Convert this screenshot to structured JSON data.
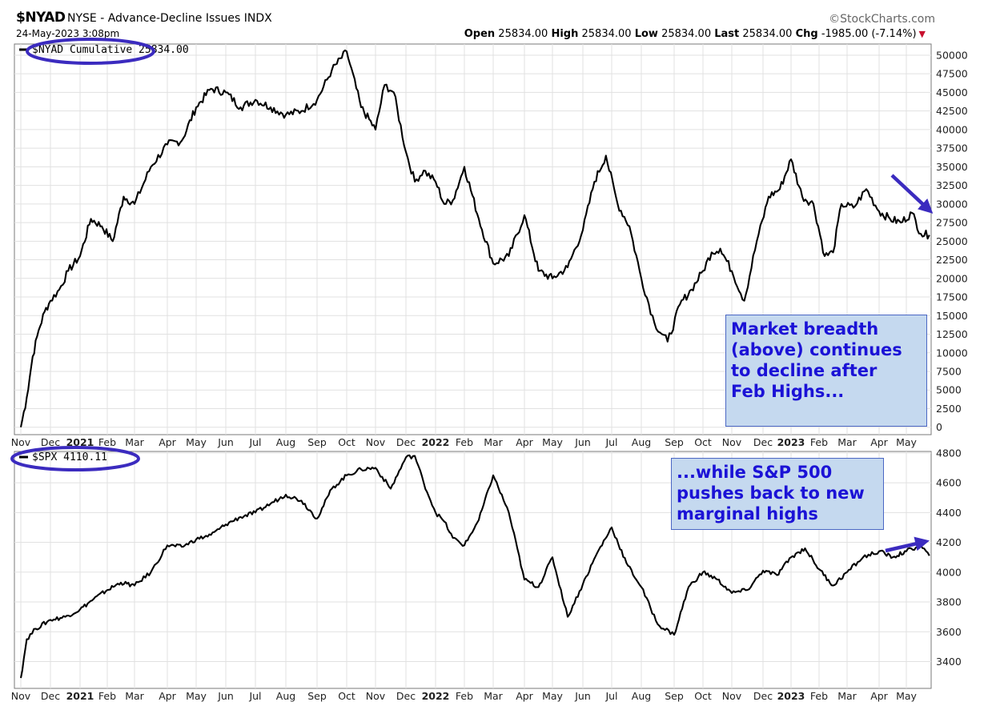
{
  "header": {
    "symbol": "$NYAD",
    "description": "NYSE - Advance-Decline Issues INDX",
    "datetime": "24-May-2023 3:08pm",
    "brand": "©StockCharts.com",
    "open_label": "Open",
    "open": "25834.00",
    "high_label": "High",
    "high": "25834.00",
    "low_label": "Low",
    "low": "25834.00",
    "last_label": "Last",
    "last": "25834.00",
    "chg_label": "Chg",
    "chg": "-1985.00 (-7.14%)"
  },
  "colors": {
    "line": "#000000",
    "circle": "#3b2bbf",
    "arrow": "#3b2bbf",
    "annotation_text": "#1b12d6",
    "annotation_bg": "#c5d9ef"
  },
  "annotations": {
    "breadth": "Market breadth\n(above) continues\nto decline after\nFeb Highs...",
    "spx": "...while S&P 500\npushes back to new\nmarginal highs"
  },
  "chart_data": [
    {
      "type": "line",
      "legend": "$NYAD Cumulative 25834.00",
      "x_axis": [
        "Nov",
        "Dec",
        "2021",
        "Feb",
        "Mar",
        "Apr",
        "May",
        "Jun",
        "Jul",
        "Aug",
        "Sep",
        "Oct",
        "Nov",
        "Dec",
        "2022",
        "Feb",
        "Mar",
        "Apr",
        "May",
        "Jun",
        "Jul",
        "Aug",
        "Sep",
        "Oct",
        "Nov",
        "Dec",
        "2023",
        "Feb",
        "Mar",
        "Apr",
        "May"
      ],
      "x_axis_bold": [
        "2021",
        "2022",
        "2023"
      ],
      "y_ticks": [
        0,
        2500,
        5000,
        7500,
        10000,
        12500,
        15000,
        17500,
        20000,
        22500,
        25000,
        27500,
        30000,
        32500,
        35000,
        37500,
        40000,
        42500,
        45000,
        47500,
        50000
      ],
      "ylim": [
        -1000,
        51500
      ],
      "x_unit": "months since Nov 2020",
      "x": [
        0,
        0.2,
        0.4,
        0.6,
        0.8,
        1.0,
        1.3,
        1.6,
        2.0,
        2.4,
        2.8,
        3.2,
        3.6,
        4.0,
        4.5,
        5.0,
        5.5,
        6.0,
        6.5,
        7.0,
        7.5,
        8.0,
        8.5,
        9.0,
        9.5,
        10.0,
        10.5,
        11.0,
        11.5,
        12.0,
        12.3,
        12.6,
        13.0,
        13.3,
        13.6,
        14.0,
        14.3,
        14.6,
        15.0,
        15.5,
        16.0,
        16.5,
        17.0,
        17.5,
        18.0,
        18.5,
        19.0,
        19.4,
        19.8,
        20.2,
        20.6,
        21.0,
        21.4,
        21.8,
        22.2,
        22.6,
        23.0,
        23.3,
        23.6,
        24.0,
        24.4,
        24.8,
        25.2,
        25.6,
        26.0,
        26.4,
        26.8,
        27.2,
        27.5,
        27.8,
        28.2,
        28.6,
        29.0,
        29.4,
        29.8,
        30.2,
        30.5,
        30.8
      ],
      "y": [
        0,
        4000,
        9500,
        13000,
        15500,
        17000,
        18500,
        21000,
        23000,
        28000,
        27000,
        25000,
        31000,
        30000,
        35000,
        38000,
        38500,
        43000,
        45500,
        45000,
        43000,
        44000,
        43000,
        42000,
        42500,
        44000,
        48000,
        50500,
        43000,
        40000,
        46000,
        45000,
        37000,
        33000,
        34500,
        33000,
        30000,
        30500,
        35000,
        28000,
        22000,
        23000,
        28500,
        21000,
        20000,
        21500,
        26500,
        33000,
        36500,
        30000,
        27000,
        20000,
        14000,
        11500,
        16500,
        18500,
        21000,
        23500,
        24000,
        21000,
        17000,
        25000,
        31000,
        32000,
        36000,
        31000,
        30000,
        23000,
        23500,
        30000,
        29500,
        32000,
        29000,
        28000,
        27500,
        28800,
        26000,
        25834
      ]
    },
    {
      "type": "line",
      "legend": "$SPX 4110.11",
      "x_axis": [
        "Nov",
        "Dec",
        "2021",
        "Feb",
        "Mar",
        "Apr",
        "May",
        "Jun",
        "Jul",
        "Aug",
        "Sep",
        "Oct",
        "Nov",
        "Dec",
        "2022",
        "Feb",
        "Mar",
        "Apr",
        "May",
        "Jun",
        "Jul",
        "Aug",
        "Sep",
        "Oct",
        "Nov",
        "Dec",
        "2023",
        "Feb",
        "Mar",
        "Apr",
        "May"
      ],
      "x_axis_bold": [
        "2021",
        "2022",
        "2023"
      ],
      "y_ticks": [
        3400,
        3600,
        3800,
        4000,
        4200,
        4400,
        4600,
        4800
      ],
      "ylim": [
        3220,
        4810
      ],
      "x_unit": "months since Nov 2020",
      "x": [
        0,
        0.2,
        0.5,
        1.0,
        1.5,
        2.0,
        2.5,
        3.0,
        3.5,
        4.0,
        4.5,
        5.0,
        5.5,
        6.0,
        6.5,
        7.0,
        7.5,
        8.0,
        8.5,
        9.0,
        9.5,
        10.0,
        10.5,
        11.0,
        11.5,
        12.0,
        12.5,
        13.0,
        13.3,
        13.6,
        14.0,
        14.3,
        14.6,
        15.0,
        15.5,
        16.0,
        16.5,
        17.0,
        17.5,
        18.0,
        18.5,
        19.0,
        19.5,
        20.0,
        20.5,
        21.0,
        21.5,
        22.0,
        22.5,
        23.0,
        23.5,
        24.0,
        24.5,
        25.0,
        25.5,
        26.0,
        26.5,
        27.0,
        27.5,
        28.0,
        28.5,
        29.0,
        29.5,
        30.0,
        30.5,
        30.8
      ],
      "y": [
        3290,
        3550,
        3620,
        3680,
        3700,
        3750,
        3820,
        3880,
        3930,
        3910,
        4000,
        4180,
        4170,
        4220,
        4250,
        4320,
        4370,
        4400,
        4460,
        4520,
        4480,
        4360,
        4560,
        4650,
        4690,
        4700,
        4560,
        4770,
        4780,
        4600,
        4400,
        4340,
        4230,
        4180,
        4350,
        4650,
        4400,
        3950,
        3900,
        4100,
        3700,
        3920,
        4130,
        4300,
        4060,
        3900,
        3650,
        3580,
        3900,
        4000,
        3950,
        3860,
        3880,
        4010,
        3980,
        4100,
        4160,
        4020,
        3910,
        4000,
        4100,
        4140,
        4100,
        4140,
        4180,
        4110
      ]
    }
  ]
}
